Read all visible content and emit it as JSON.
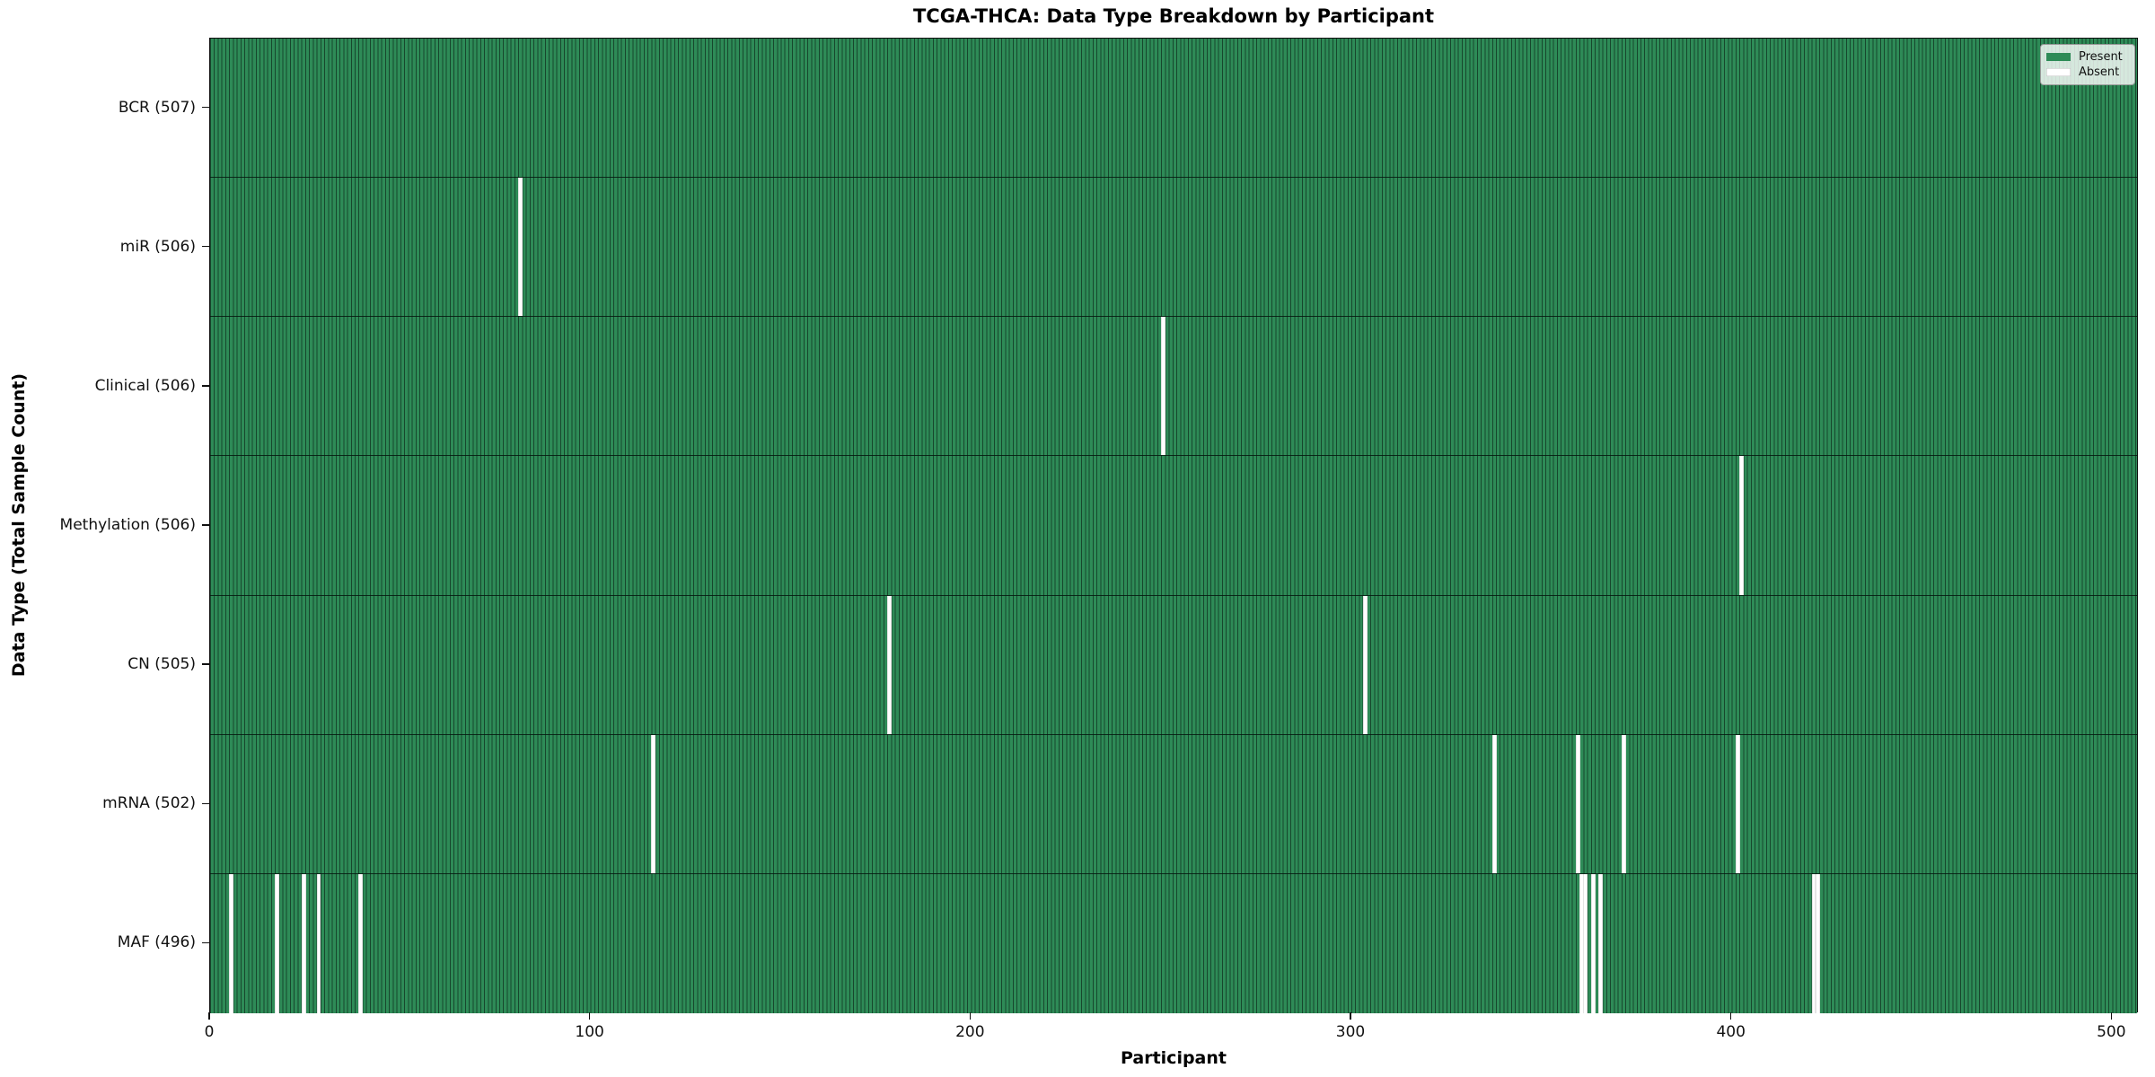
{
  "title": "TCGA-THCA: Data Type Breakdown by Participant",
  "chart_data": {
    "type": "heatmap",
    "title": "TCGA-THCA: Data Type Breakdown by Participant",
    "xlabel": "Participant",
    "ylabel": "Data Type (Total Sample Count)",
    "x_ticks": [
      0,
      100,
      200,
      300,
      400,
      500
    ],
    "x_range": [
      0,
      507
    ],
    "total_participants": 507,
    "grid": false,
    "legend_position": "upper right",
    "legend": [
      {
        "label": "Present",
        "color": "#2e8b57"
      },
      {
        "label": "Absent",
        "color": "#ffffff"
      }
    ],
    "colors": {
      "present_fill": "#2e8b57",
      "present_edge": "#17472d",
      "absent_fill": "#ffffff",
      "absent_edge": "#c9c9c9",
      "row_separator": "#0a1f14",
      "axis": "#101010"
    },
    "rows": [
      {
        "label": "BCR (507)",
        "data_type": "BCR",
        "present_count": 507,
        "absent_participants": []
      },
      {
        "label": "miR (506)",
        "data_type": "miR",
        "present_count": 506,
        "absent_participants": [
          81
        ]
      },
      {
        "label": "Clinical (506)",
        "data_type": "Clinical",
        "present_count": 506,
        "absent_participants": [
          250
        ]
      },
      {
        "label": "Methylation (506)",
        "data_type": "Methylation",
        "present_count": 506,
        "absent_participants": [
          402
        ]
      },
      {
        "label": "CN (505)",
        "data_type": "CN",
        "present_count": 505,
        "absent_participants": [
          178,
          303
        ]
      },
      {
        "label": "mRNA (502)",
        "data_type": "mRNA",
        "present_count": 502,
        "absent_participants": [
          116,
          337,
          359,
          371,
          401
        ]
      },
      {
        "label": "MAF (496)",
        "data_type": "MAF",
        "present_count": 496,
        "absent_participants": [
          5,
          17,
          24,
          28,
          39,
          360,
          361,
          363,
          365,
          421,
          422
        ]
      }
    ]
  }
}
